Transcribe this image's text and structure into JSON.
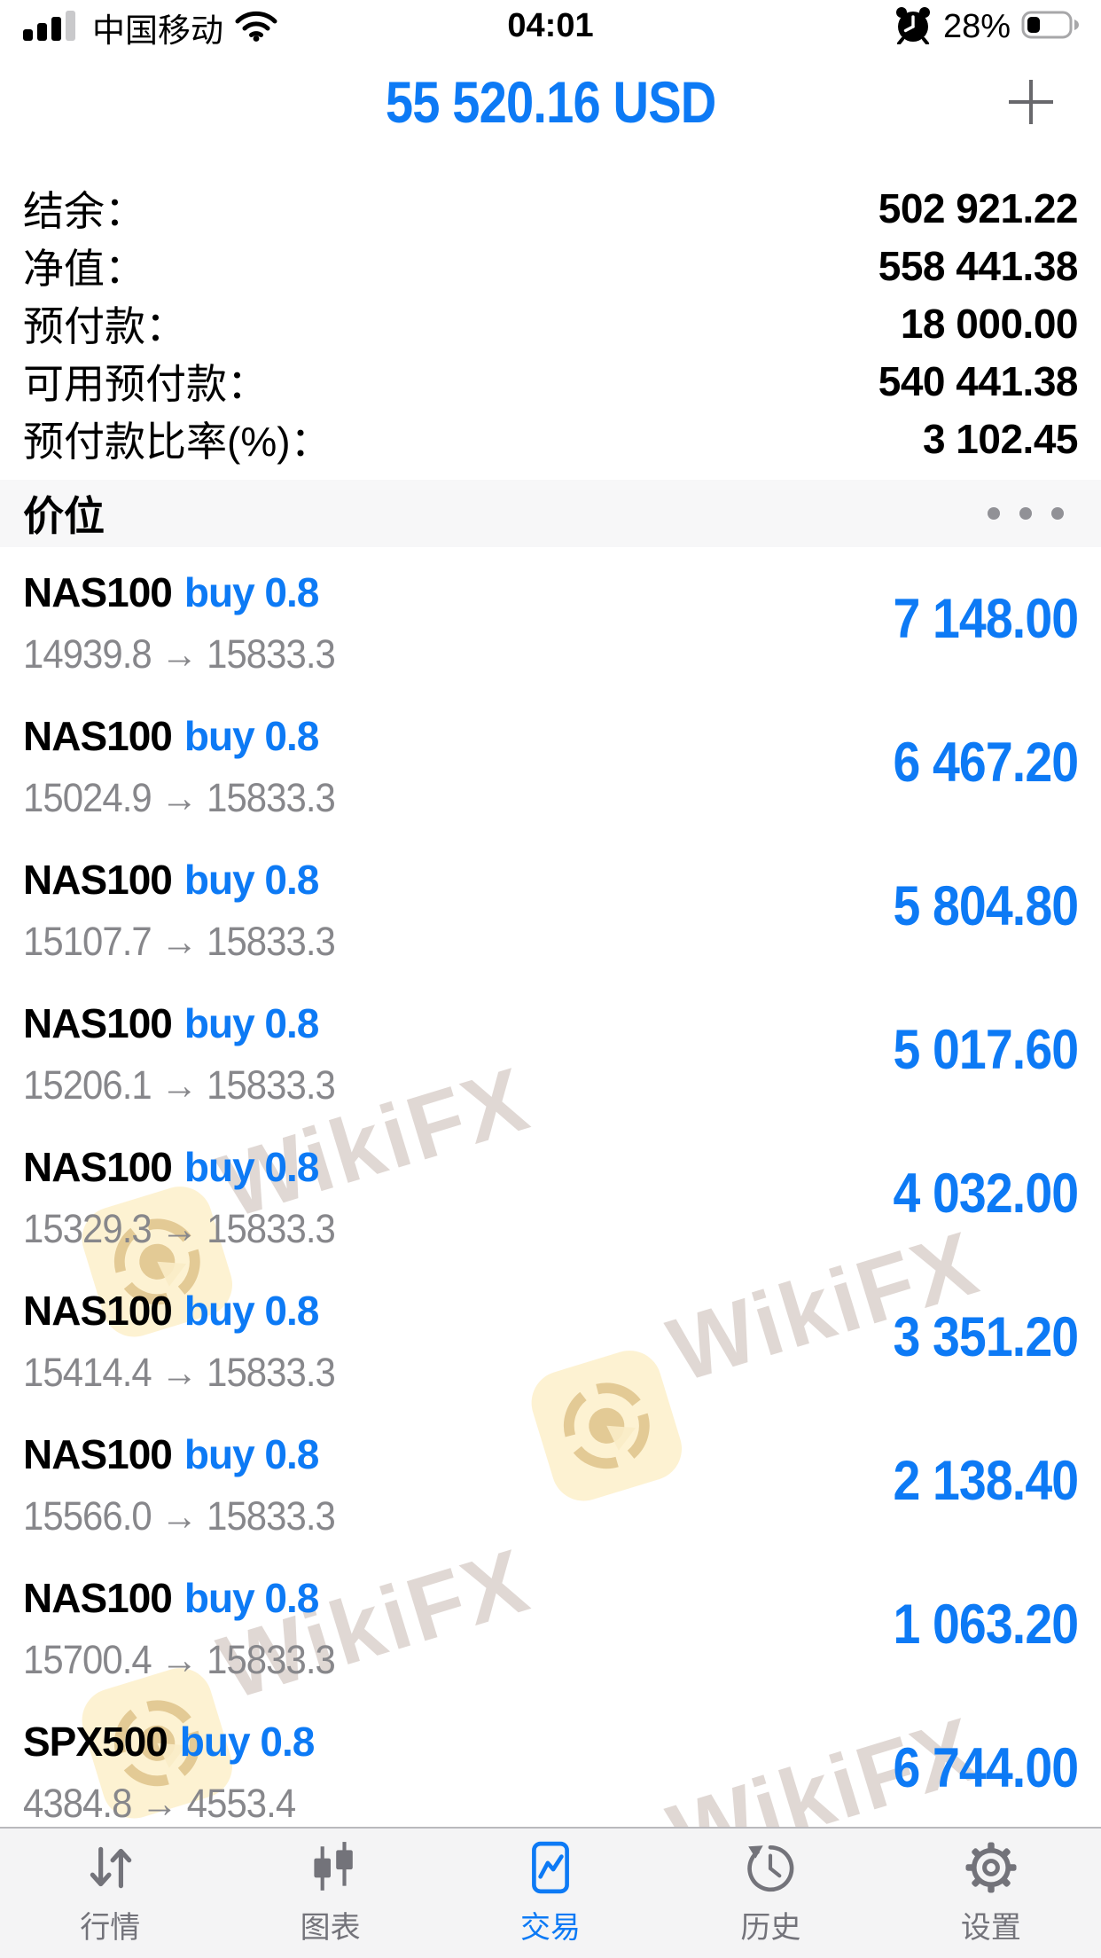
{
  "status_bar": {
    "carrier": "中国移动",
    "time": "04:01",
    "battery": "28%"
  },
  "header": {
    "amount": "55 520.16 USD"
  },
  "account": {
    "rows": [
      {
        "label": "结余：",
        "value": "502 921.22"
      },
      {
        "label": "净值：",
        "value": "558 441.38"
      },
      {
        "label": "预付款：",
        "value": "18 000.00"
      },
      {
        "label": "可用预付款：",
        "value": "540 441.38"
      },
      {
        "label": "预付款比率(%)：",
        "value": "3 102.45"
      }
    ]
  },
  "section": {
    "title": "价位"
  },
  "glyphs": {
    "arrow": "→"
  },
  "watermark": {
    "text": "WikiFX"
  },
  "positions": [
    {
      "symbol": "NAS100",
      "side": "buy",
      "volume": "0.8",
      "open": "14939.8",
      "current": "15833.3",
      "profit": "7 148.00"
    },
    {
      "symbol": "NAS100",
      "side": "buy",
      "volume": "0.8",
      "open": "15024.9",
      "current": "15833.3",
      "profit": "6 467.20"
    },
    {
      "symbol": "NAS100",
      "side": "buy",
      "volume": "0.8",
      "open": "15107.7",
      "current": "15833.3",
      "profit": "5 804.80"
    },
    {
      "symbol": "NAS100",
      "side": "buy",
      "volume": "0.8",
      "open": "15206.1",
      "current": "15833.3",
      "profit": "5 017.60"
    },
    {
      "symbol": "NAS100",
      "side": "buy",
      "volume": "0.8",
      "open": "15329.3",
      "current": "15833.3",
      "profit": "4 032.00"
    },
    {
      "symbol": "NAS100",
      "side": "buy",
      "volume": "0.8",
      "open": "15414.4",
      "current": "15833.3",
      "profit": "3 351.20"
    },
    {
      "symbol": "NAS100",
      "side": "buy",
      "volume": "0.8",
      "open": "15566.0",
      "current": "15833.3",
      "profit": "2 138.40"
    },
    {
      "symbol": "NAS100",
      "side": "buy",
      "volume": "0.8",
      "open": "15700.4",
      "current": "15833.3",
      "profit": "1 063.20"
    },
    {
      "symbol": "SPX500",
      "side": "buy",
      "volume": "0.8",
      "open": "4384.8",
      "current": "4553.4",
      "profit": "6 744.00"
    }
  ],
  "tab_bar": {
    "tabs": [
      {
        "label": "行情",
        "icon": "quotes-icon",
        "active": false
      },
      {
        "label": "图表",
        "icon": "chart-icon",
        "active": false
      },
      {
        "label": "交易",
        "icon": "trade-icon",
        "active": true
      },
      {
        "label": "历史",
        "icon": "history-icon",
        "active": false
      },
      {
        "label": "设置",
        "icon": "settings-icon",
        "active": false
      }
    ]
  },
  "colors": {
    "accent_blue": "#0d7af5",
    "price_gray": "#87878b",
    "section_bg": "#f7f7f8",
    "tabbar_bg": "#f4f4f5",
    "inactive_tab": "#73737a"
  }
}
